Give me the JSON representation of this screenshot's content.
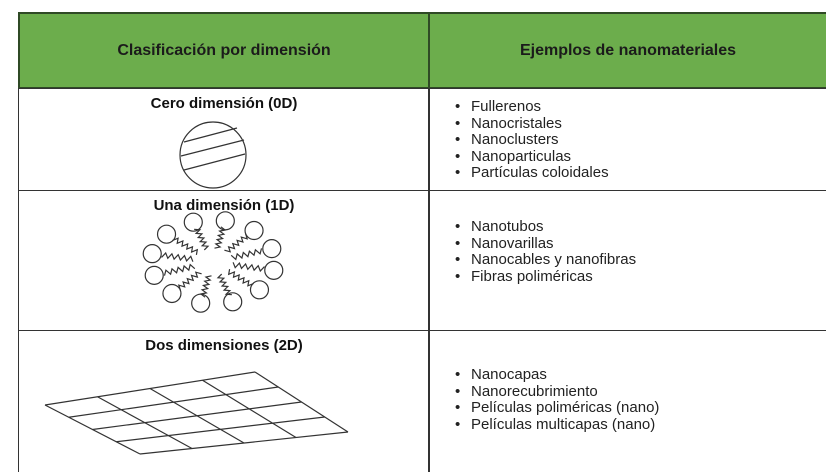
{
  "table": {
    "headers": [
      "Clasificación por dimensión",
      "Ejemplos de nanomateriales"
    ],
    "rows": [
      {
        "dimension": "Cero dimensión (0D)",
        "examples": [
          "Fullerenos",
          "Nanocristales",
          "Nanoclusters",
          "Nanoparticulas",
          "Partículas coloidales"
        ]
      },
      {
        "dimension": "Una dimensión (1D)",
        "examples": [
          "Nanotubos",
          "Nanovarillas",
          "Nanocables y nanofibras",
          "Fibras poliméricas"
        ]
      },
      {
        "dimension": "Dos dimensiones (2D)",
        "examples": [
          "Nanocapas",
          "Nanorecubrimiento",
          "Películas poliméricas (nano)",
          "Películas multicapas (nano)"
        ]
      }
    ]
  }
}
